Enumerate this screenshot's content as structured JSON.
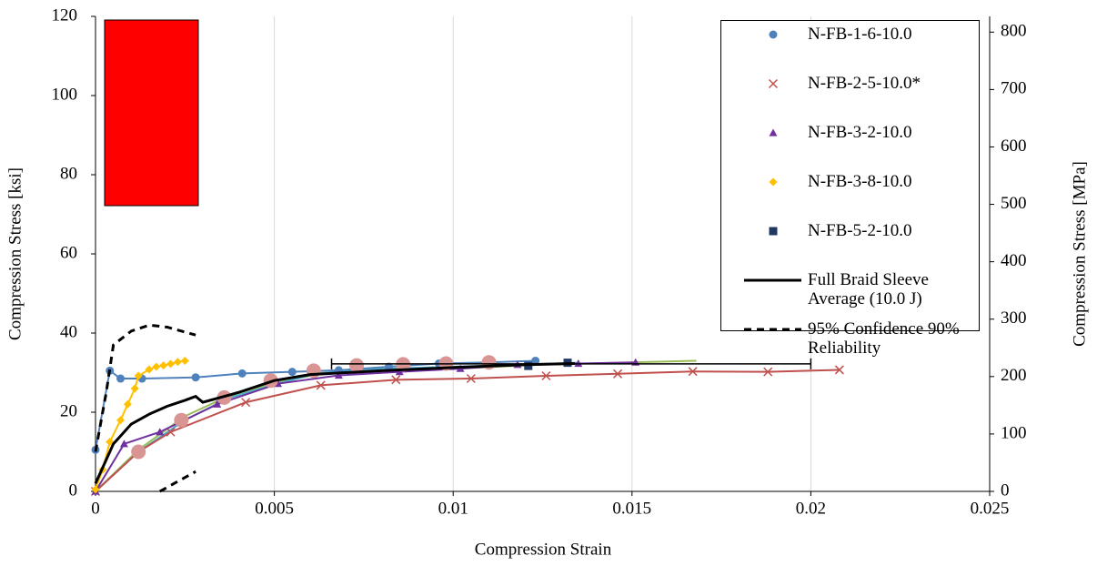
{
  "chart_data": {
    "type": "scatter",
    "xlabel": "Compression Strain",
    "ylabel": "Compression Stress [ksi]",
    "y2label": "Compression Stress [MPa]",
    "xlim": [
      0,
      0.025
    ],
    "xticks": [
      0,
      0.005,
      0.01,
      0.015,
      0.02,
      0.025
    ],
    "ylim": [
      0,
      120
    ],
    "yticks": [
      0,
      20,
      40,
      60,
      80,
      100,
      120
    ],
    "y2lim": [
      0,
      827.4
    ],
    "y2ticks": [
      0,
      100,
      200,
      300,
      400,
      500,
      600,
      700,
      800
    ],
    "grid": "x",
    "legend": "upper right",
    "series": [
      {
        "color": "#9bbb59",
        "line": "solid",
        "marker": "none",
        "x": [
          0,
          0.0012,
          0.0025,
          0.0037,
          0.005,
          0.0062,
          0.0075,
          0.01,
          0.0125,
          0.0168
        ],
        "values": [
          0,
          10.5,
          19,
          24,
          27.5,
          29.5,
          30.3,
          31,
          32,
          33
        ]
      },
      {
        "color": "#4bacc6",
        "line": "solid",
        "marker": "none",
        "x": [
          0,
          0.0012,
          0.0025,
          0.0037,
          0.005,
          0.0062,
          0.0075,
          0.01,
          0.0135
        ],
        "values": [
          0,
          10,
          18,
          23.5,
          27,
          29.8,
          30.8,
          31.5,
          32.5
        ]
      },
      {
        "name": "N-FB-1-6-10.0",
        "color": "#4f81bd",
        "line": "solid",
        "marker": "circle",
        "x": [
          0,
          0.0004,
          0.0007,
          0.0013,
          0.0028,
          0.0041,
          0.0055,
          0.0068,
          0.0082,
          0.0096,
          0.011,
          0.0123
        ],
        "values": [
          10.5,
          30.5,
          28.5,
          28.5,
          28.8,
          29.8,
          30.2,
          30.6,
          31.5,
          32.3,
          32.6,
          33
        ]
      },
      {
        "name": "N-FB-2-5-10.0*",
        "color": "#c0504d",
        "line": "solid",
        "marker": "x",
        "x": [
          0,
          0.0012,
          0.0021,
          0.0042,
          0.0063,
          0.0084,
          0.0105,
          0.0126,
          0.0146,
          0.0167,
          0.0188,
          0.0208
        ],
        "values": [
          0,
          10,
          15,
          22.5,
          26.8,
          28.2,
          28.5,
          29.2,
          29.7,
          30.3,
          30.2,
          30.7
        ]
      },
      {
        "name": "N-FB-3-2-10.0",
        "color": "#7030a0",
        "line": "solid",
        "marker": "triangle",
        "x": [
          0,
          0.0008,
          0.0018,
          0.0034,
          0.0051,
          0.0068,
          0.0085,
          0.0102,
          0.0118,
          0.0135,
          0.0151
        ],
        "values": [
          0,
          12,
          15,
          22,
          27.2,
          29.3,
          30.2,
          31,
          32,
          32.3,
          32.6
        ]
      },
      {
        "name": "N-FB-3-8-10.0",
        "color": "#ffc000",
        "line": "solid",
        "marker": "diamond",
        "x": [
          0,
          0.0002,
          0.0004,
          0.0007,
          0.0009,
          0.0011,
          0.0012,
          0.0015,
          0.0017,
          0.0019,
          0.0021,
          0.0023,
          0.0025
        ],
        "values": [
          0.5,
          5.5,
          12.5,
          18,
          22,
          26,
          29.2,
          30.8,
          31.5,
          31.8,
          32.2,
          32.7,
          33
        ]
      },
      {
        "name": "N-FB-5-2-10.0",
        "color": "#1f3864",
        "line": "none",
        "marker": "square",
        "x": [
          0.0121,
          0.0132
        ],
        "values": [
          31.7,
          32.5
        ]
      },
      {
        "color": "#d99594",
        "line": "none",
        "marker": "bigcircle",
        "x": [
          0.0012,
          0.0024,
          0.0036,
          0.0049,
          0.0061,
          0.0073,
          0.0086,
          0.0098,
          0.011
        ],
        "values": [
          10,
          18,
          23.7,
          28,
          30.5,
          31.8,
          32.1,
          32.3,
          32.6
        ]
      },
      {
        "name": "Full Braid Sleeve Average (10.0 J)",
        "color": "#000000",
        "line": "solid",
        "marker": "none",
        "x": [
          0,
          0.0005,
          0.001,
          0.0015,
          0.002,
          0.0025,
          0.0028,
          0.003,
          0.004,
          0.005,
          0.006,
          0.008,
          0.01,
          0.012,
          0.0134
        ],
        "values": [
          2,
          12,
          17,
          19.5,
          21.5,
          23,
          24,
          22.5,
          25,
          28,
          29.5,
          30.5,
          31.3,
          32,
          32.3
        ],
        "xerr": {
          "y": 32.2,
          "x": [
            0.0066,
            0.02
          ]
        }
      },
      {
        "name": "95% Confidence 90% Reliability",
        "color": "#000000",
        "line": "dashed",
        "marker": "none",
        "x": [
          0,
          0.0003,
          0.0005,
          0.001,
          0.0015,
          0.002,
          0.0028,
          null,
          0.0018,
          0.0028
        ],
        "values": [
          10,
          25,
          37,
          40.5,
          42,
          41.5,
          39.5,
          null,
          0,
          5
        ]
      }
    ]
  }
}
